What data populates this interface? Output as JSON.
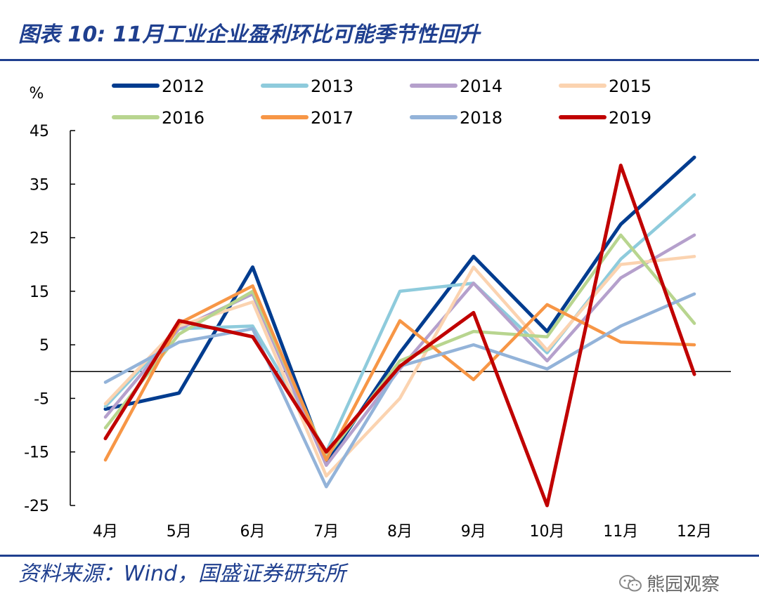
{
  "title": "图表 10: 11月工业企业盈利环比可能季节性回升",
  "source": "资料来源：Wind，国盛证券研究所",
  "watermark": "熊园观察",
  "chart_data": {
    "type": "line",
    "ylabel": "%",
    "ylim": [
      -25,
      45
    ],
    "yticks": [
      45,
      35,
      25,
      15,
      5,
      -5,
      -15,
      -25
    ],
    "categories": [
      "4月",
      "5月",
      "6月",
      "7月",
      "8月",
      "9月",
      "10月",
      "11月",
      "12月"
    ],
    "legend_position": "top",
    "series": [
      {
        "name": "2012",
        "color": "#003c8f",
        "values": [
          -7.0,
          -4.0,
          19.5,
          -17.0,
          3.5,
          21.5,
          7.5,
          27.5,
          40.0
        ]
      },
      {
        "name": "2013",
        "color": "#8ecbdc",
        "values": [
          -6.5,
          8.0,
          8.5,
          -15.0,
          15.0,
          16.5,
          3.5,
          21.0,
          33.0
        ]
      },
      {
        "name": "2014",
        "color": "#b5a0cc",
        "values": [
          -8.5,
          8.0,
          14.5,
          -17.5,
          0.5,
          16.5,
          2.0,
          17.5,
          25.5
        ]
      },
      {
        "name": "2015",
        "color": "#fbd3b0",
        "values": [
          -6.0,
          8.5,
          13.0,
          -19.5,
          -5.0,
          19.5,
          4.0,
          20.0,
          21.5
        ]
      },
      {
        "name": "2016",
        "color": "#b8d58f",
        "values": [
          -10.5,
          7.0,
          15.0,
          -16.0,
          2.0,
          7.5,
          6.5,
          25.5,
          9.0
        ]
      },
      {
        "name": "2017",
        "color": "#f79646",
        "values": [
          -16.5,
          9.0,
          16.0,
          -16.5,
          9.5,
          -1.5,
          12.5,
          5.5,
          5.0
        ]
      },
      {
        "name": "2018",
        "color": "#93b3d9",
        "values": [
          -2.0,
          5.5,
          8.0,
          -21.5,
          1.0,
          5.0,
          0.5,
          8.5,
          14.5
        ]
      },
      {
        "name": "2019",
        "color": "#c00000",
        "values": [
          -12.5,
          9.5,
          6.5,
          -15.0,
          1.0,
          11.0,
          -25.0,
          38.5,
          -0.5
        ]
      }
    ]
  }
}
